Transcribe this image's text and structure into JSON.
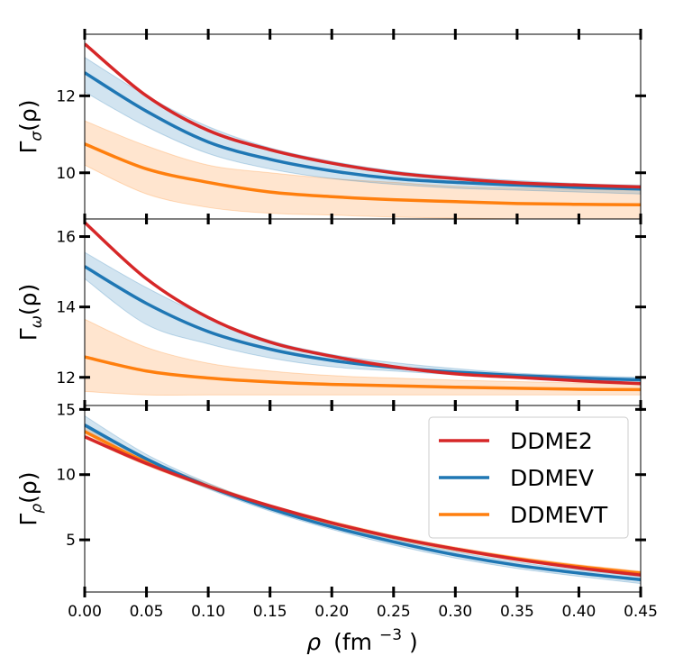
{
  "chart_data": {
    "type": "line",
    "layout": "three vertically stacked panels sharing the x axis",
    "x": [
      0.0,
      0.05,
      0.1,
      0.15,
      0.2,
      0.25,
      0.3,
      0.35,
      0.4,
      0.45
    ],
    "xlabel": {
      "base": "ρ",
      "unit": "(fm",
      "exp": "−3",
      "close": ")"
    },
    "xlim": [
      0.0,
      0.45
    ],
    "xticks": [
      "0.00",
      "0.05",
      "0.10",
      "0.15",
      "0.20",
      "0.25",
      "0.30",
      "0.35",
      "0.40",
      "0.45"
    ],
    "grid": false,
    "legend": {
      "location": "lower-right panel, upper right",
      "entries": [
        "DDME2",
        "DDMEV",
        "DDMEVT"
      ]
    },
    "colors": {
      "DDME2": "#d62728",
      "DDMEV": "#1f77b4",
      "DDMEVT": "#ff7f0e"
    },
    "panels": [
      {
        "ylabel": {
          "base": "Γ",
          "sub": "σ",
          "arg": "(ρ)"
        },
        "ylim": [
          8.8,
          13.6
        ],
        "yticks": [
          10,
          12
        ],
        "series": [
          {
            "name": "DDME2",
            "values": [
              13.35,
              12.0,
              11.1,
              10.6,
              10.25,
              10.0,
              9.85,
              9.74,
              9.68,
              9.63
            ]
          },
          {
            "name": "DDMEV",
            "values": [
              12.6,
              11.6,
              10.8,
              10.35,
              10.05,
              9.85,
              9.75,
              9.68,
              9.62,
              9.58
            ],
            "band_low": [
              12.1,
              11.2,
              10.5,
              10.1,
              9.85,
              9.7,
              9.6,
              9.55,
              9.5,
              9.45
            ],
            "band_high": [
              13.0,
              12.0,
              11.2,
              10.65,
              10.3,
              10.05,
              9.9,
              9.8,
              9.72,
              9.68
            ]
          },
          {
            "name": "DDMEVT",
            "values": [
              10.75,
              10.1,
              9.75,
              9.5,
              9.38,
              9.3,
              9.25,
              9.2,
              9.18,
              9.17
            ],
            "band_low": [
              10.2,
              9.45,
              9.1,
              8.95,
              8.9,
              8.85,
              8.82,
              8.8,
              8.8,
              8.8
            ],
            "band_high": [
              11.35,
              10.7,
              10.2,
              10.0,
              9.85,
              9.75,
              9.65,
              9.6,
              9.57,
              9.55
            ]
          }
        ]
      },
      {
        "ylabel": {
          "base": "Γ",
          "sub": "ω",
          "arg": "(ρ)"
        },
        "ylim": [
          11.2,
          16.5
        ],
        "yticks": [
          12,
          14,
          16
        ],
        "series": [
          {
            "name": "DDME2",
            "values": [
              16.4,
              14.8,
              13.7,
              13.0,
              12.6,
              12.3,
              12.1,
              12.0,
              11.9,
              11.82
            ]
          },
          {
            "name": "DDMEV",
            "values": [
              15.15,
              14.1,
              13.3,
              12.8,
              12.48,
              12.28,
              12.15,
              12.05,
              11.98,
              11.93
            ],
            "band_low": [
              14.8,
              13.5,
              12.95,
              12.55,
              12.3,
              12.18,
              12.07,
              11.98,
              11.92,
              11.88
            ],
            "band_high": [
              15.55,
              14.55,
              13.7,
              13.05,
              12.65,
              12.42,
              12.25,
              12.12,
              12.05,
              12.0
            ]
          },
          {
            "name": "DDMEVT",
            "values": [
              12.58,
              12.18,
              11.98,
              11.87,
              11.8,
              11.76,
              11.72,
              11.69,
              11.66,
              11.65
            ],
            "band_low": [
              11.6,
              11.5,
              11.5,
              11.5,
              11.5,
              11.5,
              11.5,
              11.5,
              11.5,
              11.5
            ],
            "band_high": [
              13.65,
              12.85,
              12.4,
              12.18,
              12.05,
              11.98,
              11.92,
              11.88,
              11.84,
              11.8
            ]
          }
        ]
      },
      {
        "ylabel": {
          "base": "Γ",
          "sub": "ρ",
          "arg": "(ρ)"
        },
        "ylim": [
          1.0,
          15.3
        ],
        "yticks": [
          5,
          10,
          15
        ],
        "series": [
          {
            "name": "DDME2",
            "values": [
              12.9,
              10.85,
              9.1,
              7.6,
              6.3,
              5.2,
              4.3,
              3.5,
              2.85,
              2.3
            ]
          },
          {
            "name": "DDMEV",
            "values": [
              13.8,
              11.2,
              9.1,
              7.4,
              6.0,
              4.85,
              3.85,
              3.05,
              2.45,
              1.95
            ],
            "band_low": [
              13.3,
              10.9,
              8.9,
              7.2,
              5.8,
              4.6,
              3.6,
              2.8,
              2.2,
              1.65
            ],
            "band_high": [
              14.5,
              11.55,
              9.35,
              7.6,
              6.2,
              5.05,
              4.1,
              3.3,
              2.7,
              2.2
            ]
          },
          {
            "name": "DDMEVT",
            "values": [
              13.3,
              10.95,
              9.1,
              7.55,
              6.3,
              5.2,
              4.3,
              3.55,
              2.95,
              2.45
            ],
            "band_low": [
              12.8,
              10.7,
              8.95,
              7.4,
              6.15,
              5.05,
              4.15,
              3.4,
              2.8,
              2.3
            ],
            "band_high": [
              13.9,
              11.25,
              9.3,
              7.7,
              6.45,
              5.35,
              4.45,
              3.7,
              3.1,
              2.6
            ]
          }
        ]
      }
    ]
  }
}
